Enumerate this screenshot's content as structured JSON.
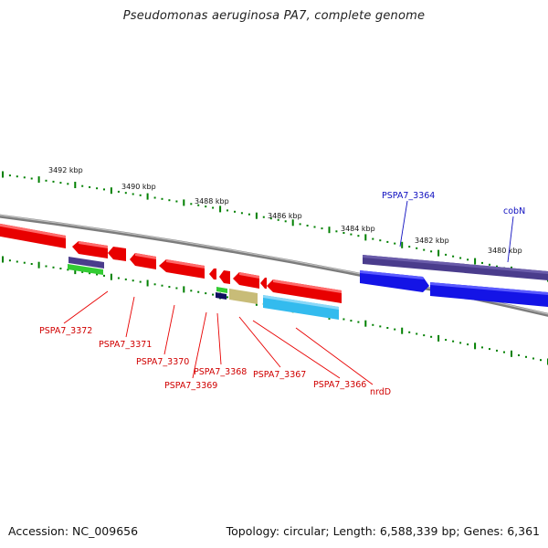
{
  "header": {
    "title": "Pseudomonas aeruginosa PA7, complete genome"
  },
  "footer": {
    "accession": "Accession: NC_009656",
    "topology": "Topology: circular; Length: 6,588,339 bp; Genes: 6,361"
  },
  "colors": {
    "forward_cds": "#1010e8",
    "reverse_cds": "#e80000",
    "backbone": "#808080",
    "ticks": "#008000",
    "label_forward": "#1010c0",
    "label_reverse": "#d00000",
    "cog_purple": "#4a3c8c",
    "cog_green": "#33cc33",
    "cog_navy": "#101060",
    "cog_khaki": "#c8bc78",
    "cog_cyan": "#33bbee"
  },
  "tick_labels": [
    "3492 kbp",
    "3490 kbp",
    "3488 kbp",
    "3486 kbp",
    "3484 kbp",
    "3482 kbp",
    "3480 kbp"
  ],
  "gene_labels": {
    "forward": [
      "PSPA7_3364",
      "cobN"
    ],
    "reverse": [
      "PSPA7_3372",
      "PSPA7_3371",
      "PSPA7_3370",
      "PSPA7_3369",
      "PSPA7_3368",
      "PSPA7_3367",
      "PSPA7_3366",
      "nrdD"
    ]
  }
}
